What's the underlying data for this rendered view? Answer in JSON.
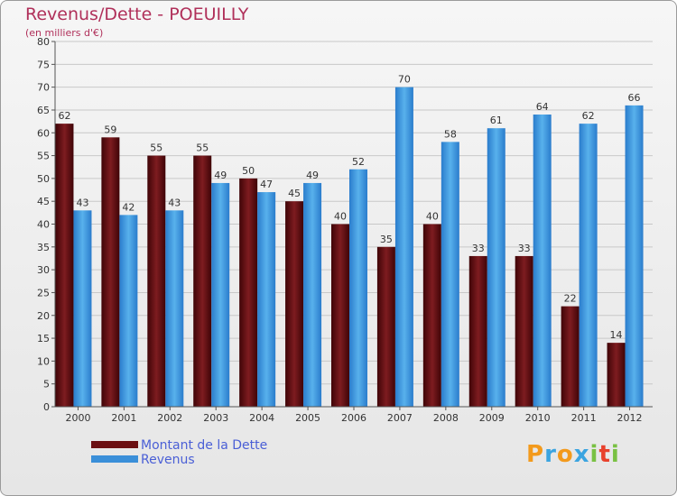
{
  "header": {
    "title": "Revenus/Dette - POEUILLY",
    "subtitle": "(en milliers d'€)"
  },
  "legend": {
    "items": [
      {
        "label": "Montant de la Dette",
        "color": "#6b0f12"
      },
      {
        "label": "Revenus",
        "color": "#3a8fd9"
      }
    ]
  },
  "logo": {
    "letters": [
      "P",
      "r",
      "o",
      "x",
      "i",
      "t",
      "i"
    ],
    "colors": [
      "#f39a1c",
      "#3ba4e0",
      "#f39a1c",
      "#3ba4e0",
      "#79c143",
      "#e8412c",
      "#79c143"
    ]
  },
  "chart_data": {
    "type": "bar",
    "title": "Revenus/Dette - POEUILLY",
    "subtitle": "(en milliers d'€)",
    "categories": [
      "2000",
      "2001",
      "2002",
      "2003",
      "2004",
      "2005",
      "2006",
      "2007",
      "2008",
      "2009",
      "2010",
      "2011",
      "2012"
    ],
    "series": [
      {
        "name": "Montant de la Dette",
        "color": "#6b0f12",
        "values": [
          62,
          59,
          55,
          55,
          50,
          45,
          40,
          35,
          40,
          33,
          33,
          22,
          14
        ]
      },
      {
        "name": "Revenus",
        "color": "#3a8fd9",
        "values": [
          43,
          42,
          43,
          49,
          47,
          49,
          52,
          70,
          58,
          61,
          64,
          62,
          66
        ]
      }
    ],
    "ylim": [
      0,
      80
    ],
    "yticks": [
      0,
      5,
      10,
      15,
      20,
      25,
      30,
      35,
      40,
      45,
      50,
      55,
      60,
      65,
      70,
      75,
      80
    ],
    "grid": true,
    "legend_position": "bottom-left"
  }
}
